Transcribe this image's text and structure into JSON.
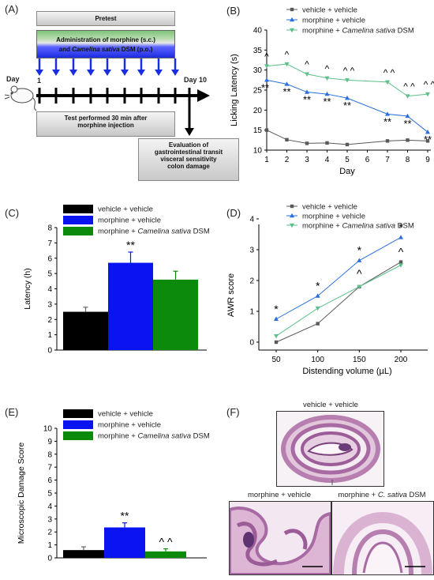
{
  "panels": {
    "a": "(A)",
    "b": "(B)",
    "c": "(C)",
    "d": "(D)",
    "e": "(E)",
    "f": "(F)"
  },
  "schematic": {
    "pretest": "Pretest",
    "administration_line1": "Administration of morphine (s.c.)",
    "administration_line2_a": "and ",
    "administration_line2_b": "Camelina sativa",
    "administration_line2_c": " DSM (p.o.)",
    "day_start": "Day",
    "day_start_num": "1",
    "day_end": "Day 10",
    "test_line1": "Test performed 30 min after",
    "test_line2": "morphine injection",
    "eval_line1": "Evaluation of",
    "eval_line2": "gastrointestinal transit",
    "eval_line3": "visceral sensitivity",
    "eval_line4": "colon damage"
  },
  "legend_labels": {
    "vv": "vehicle + vehicle",
    "mv": "morphine + vehicle",
    "mc_prefix": "morphine + ",
    "mc_italic": "Camelina sativa",
    "mc_suffix": " DSM"
  },
  "colors": {
    "vv": "#595959",
    "mv": "#2a6fdb",
    "mc": "#5cc08a",
    "bar_vv": "#000000",
    "bar_mv": "#0a14f0",
    "bar_mc": "#0c8a0c"
  },
  "chart_data": [
    {
      "id": "B",
      "type": "line",
      "xlabel": "Day",
      "ylabel": "Licking Latency (s)",
      "x_ticks": [
        "1",
        "2",
        "3",
        "4",
        "5",
        "6",
        "7",
        "8",
        "9"
      ],
      "y_ticks": [
        "10",
        "15",
        "20",
        "25",
        "30",
        "35",
        "40"
      ],
      "ylim": [
        10,
        40
      ],
      "xlim": [
        1,
        9
      ],
      "x": [
        1,
        2,
        3,
        4,
        5,
        7,
        8,
        9
      ],
      "series": [
        {
          "name": "vehicle + vehicle",
          "values": [
            15.0,
            12.6,
            11.7,
            11.8,
            11.4,
            12.3,
            12.5,
            12.3
          ]
        },
        {
          "name": "morphine + vehicle",
          "values": [
            27.5,
            26.5,
            24.5,
            24.0,
            23.0,
            19.0,
            18.5,
            14.5
          ]
        },
        {
          "name": "morphine + Camelina sativa DSM",
          "values": [
            31.0,
            31.5,
            29.0,
            28.0,
            27.5,
            27.0,
            23.5,
            24.0
          ]
        }
      ],
      "annotations_mv": [
        "**",
        "**",
        "**",
        "**",
        "**",
        "**",
        "**"
      ],
      "annotations_mc": [
        "^",
        "^",
        "^",
        "^",
        "^ ^",
        "^ ^",
        "^ ^",
        "^ ^"
      ]
    },
    {
      "id": "C",
      "type": "bar",
      "ylabel": "Latency (h)",
      "y_ticks": [
        "0",
        "1",
        "2",
        "3",
        "4",
        "5",
        "6",
        "7",
        "8"
      ],
      "ylim": [
        0,
        8
      ],
      "categories": [
        "vehicle + vehicle",
        "morphine + vehicle",
        "morphine + Camelina sativa DSM"
      ],
      "values": [
        2.5,
        5.7,
        4.6
      ],
      "errors": [
        0.3,
        0.7,
        0.55
      ],
      "annotations": [
        "",
        "**",
        ""
      ]
    },
    {
      "id": "D",
      "type": "line",
      "xlabel": "Distending volume (µL)",
      "ylabel": "AWR score",
      "x_ticks": [
        "50",
        "100",
        "150",
        "200"
      ],
      "y_ticks": [
        "0",
        "1",
        "2",
        "3",
        "4"
      ],
      "x": [
        50,
        100,
        150,
        200
      ],
      "ylim": [
        0,
        4
      ],
      "series": [
        {
          "name": "vehicle + vehicle",
          "values": [
            0.0,
            0.6,
            1.8,
            2.6
          ]
        },
        {
          "name": "morphine + vehicle",
          "values": [
            0.75,
            1.5,
            2.65,
            3.4
          ]
        },
        {
          "name": "morphine + Camelina sativa DSM",
          "values": [
            0.2,
            1.1,
            1.8,
            2.5
          ]
        }
      ],
      "annotations_mv": [
        "*",
        "*",
        "*",
        "*"
      ],
      "annotations_mc": [
        "",
        "",
        "^",
        "^"
      ]
    },
    {
      "id": "E",
      "type": "bar",
      "ylabel": "Microscopic Damage Score",
      "y_ticks": [
        "0",
        "1",
        "2",
        "3",
        "4",
        "5",
        "6",
        "7",
        "8",
        "9",
        "10"
      ],
      "ylim": [
        0,
        10
      ],
      "categories": [
        "vehicle + vehicle",
        "morphine + vehicle",
        "morphine + Camelina sativa DSM"
      ],
      "values": [
        0.6,
        2.35,
        0.5
      ],
      "errors": [
        0.25,
        0.35,
        0.2
      ],
      "annotations": [
        "",
        "**",
        "^ ^"
      ]
    }
  ],
  "histology": {
    "top_title": "vehicle + vehicle",
    "bl_title": "morphine + vehicle",
    "br_title_prefix": "morphine + ",
    "br_title_italic": "C. sativa",
    "br_title_suffix": " DSM"
  }
}
